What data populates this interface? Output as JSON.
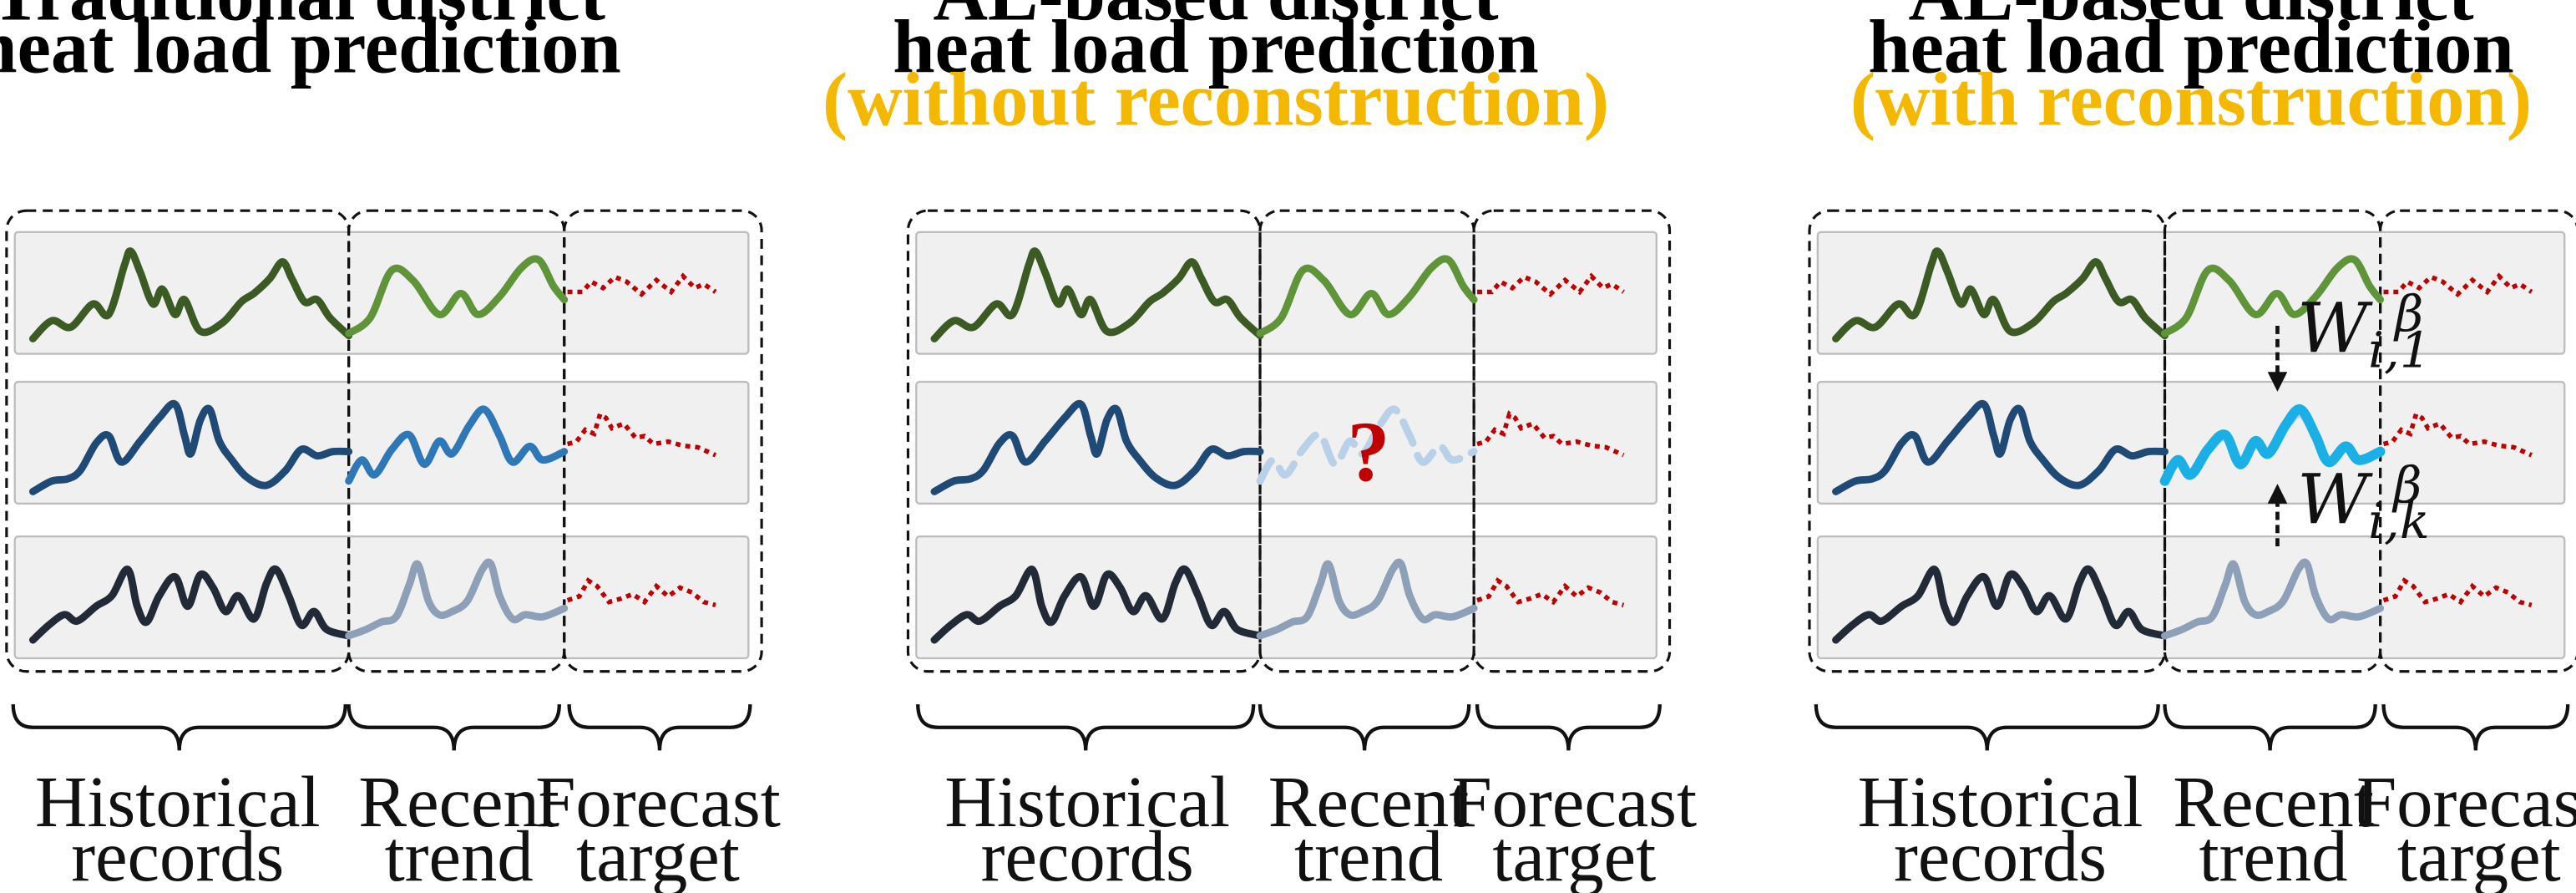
{
  "colors": {
    "title": "#000000",
    "highlight": "#f5b800",
    "row1": "#3c5a23",
    "row1_recent": "#5f9438",
    "row2": "#1f4a75",
    "row2_recent": "#2f78b8",
    "row2_missing": "#b8d0e8",
    "row2_reconstructed": "#1ab0e6",
    "row3": "#222a38",
    "row3_recent": "#8ea0b8",
    "forecast": "#c00000",
    "question": "#c00000",
    "row_fill": "#f0f0f0",
    "row_border": "#bdbdbd"
  },
  "panels": [
    {
      "title_lines": [
        "Traditional district",
        "heat load prediction"
      ],
      "subtitle": "",
      "mode": "traditional",
      "labels": {
        "historical": [
          "Historical",
          "records"
        ],
        "recent": [
          "Recent",
          "trend"
        ],
        "forecast": [
          "Forecast",
          "target"
        ]
      }
    },
    {
      "title_lines": [
        "AL-based district",
        "heat load prediction"
      ],
      "subtitle": "(without reconstruction)",
      "mode": "missing",
      "question_mark": "?",
      "labels": {
        "historical": [
          "Historical",
          "records"
        ],
        "recent": [
          "Recent",
          "trend"
        ],
        "forecast": [
          "Forecast",
          "target"
        ]
      }
    },
    {
      "title_lines": [
        "AL-based district",
        "heat load prediction"
      ],
      "subtitle": "(with reconstruction)",
      "mode": "reconstructed",
      "weight_top": {
        "base": "W",
        "sub": "i,1",
        "sup": "β"
      },
      "weight_bottom": {
        "base": "W",
        "sub": "i,k",
        "sup": "β"
      },
      "labels": {
        "historical": [
          "Historical",
          "records"
        ],
        "recent": [
          "Recent",
          "trend"
        ],
        "forecast": [
          "Forecast",
          "target"
        ]
      }
    }
  ]
}
